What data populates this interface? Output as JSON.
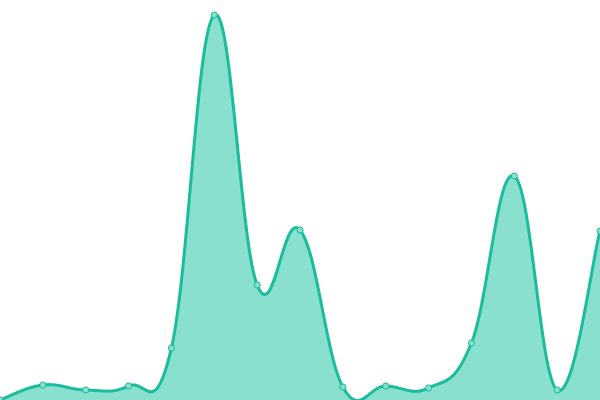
{
  "chart_data": {
    "type": "area",
    "title": "",
    "xlabel": "",
    "ylabel": "",
    "x": [
      0,
      1,
      2,
      3,
      4,
      5,
      6,
      7,
      8,
      9,
      10,
      11,
      12,
      13,
      14
    ],
    "series": [
      {
        "values": [
          0,
          15,
          10,
          14,
          52,
          385,
          115,
          170,
          13,
          14,
          12,
          57,
          224,
          10,
          169
        ]
      }
    ],
    "ylim": [
      0,
      400
    ],
    "grid": false,
    "axes_visible": false,
    "smooth": true,
    "markers": true,
    "colors": {
      "line": "#1abc9c",
      "fill": "#8ae0ce",
      "marker": "#8ae0ce"
    }
  }
}
